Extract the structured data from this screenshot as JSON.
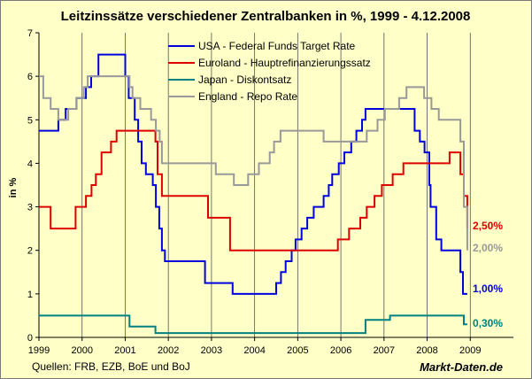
{
  "chart_data": {
    "type": "line",
    "title": "Leitzinssätze verschiedener Zentralbanken in %, 1999 - 4.12.2008",
    "ylabel": "in %",
    "xlabel": "",
    "ylim": [
      0,
      7
    ],
    "xlim": [
      1999,
      2010
    ],
    "y_ticks": [
      "0",
      "1",
      "2",
      "3",
      "4",
      "5",
      "6",
      "7"
    ],
    "x_ticks": [
      "1999",
      "2000",
      "2001",
      "2002",
      "2003",
      "2004",
      "2005",
      "2006",
      "2007",
      "2008",
      "2009"
    ],
    "grid": "vertical",
    "legend_position": "top-center",
    "series": [
      {
        "name": "USA - Federal Funds Target Rate",
        "color": "#0000DD",
        "end_label": "1,00%",
        "points": [
          [
            1999.0,
            4.75
          ],
          [
            1999.45,
            4.75
          ],
          [
            1999.45,
            5.0
          ],
          [
            1999.62,
            5.0
          ],
          [
            1999.62,
            5.25
          ],
          [
            1999.87,
            5.25
          ],
          [
            1999.87,
            5.5
          ],
          [
            2000.09,
            5.5
          ],
          [
            2000.09,
            5.75
          ],
          [
            2000.21,
            5.75
          ],
          [
            2000.21,
            6.0
          ],
          [
            2000.38,
            6.0
          ],
          [
            2000.38,
            6.5
          ],
          [
            2001.0,
            6.5
          ],
          [
            2001.0,
            6.0
          ],
          [
            2001.08,
            6.0
          ],
          [
            2001.08,
            5.5
          ],
          [
            2001.22,
            5.5
          ],
          [
            2001.22,
            5.0
          ],
          [
            2001.3,
            5.0
          ],
          [
            2001.3,
            4.5
          ],
          [
            2001.38,
            4.5
          ],
          [
            2001.38,
            4.0
          ],
          [
            2001.48,
            4.0
          ],
          [
            2001.48,
            3.75
          ],
          [
            2001.64,
            3.75
          ],
          [
            2001.64,
            3.5
          ],
          [
            2001.71,
            3.5
          ],
          [
            2001.71,
            3.0
          ],
          [
            2001.79,
            3.0
          ],
          [
            2001.79,
            2.5
          ],
          [
            2001.85,
            2.5
          ],
          [
            2001.85,
            2.0
          ],
          [
            2001.92,
            2.0
          ],
          [
            2001.92,
            1.75
          ],
          [
            2002.85,
            1.75
          ],
          [
            2002.85,
            1.25
          ],
          [
            2003.49,
            1.25
          ],
          [
            2003.49,
            1.0
          ],
          [
            2004.5,
            1.0
          ],
          [
            2004.5,
            1.25
          ],
          [
            2004.61,
            1.25
          ],
          [
            2004.61,
            1.5
          ],
          [
            2004.72,
            1.5
          ],
          [
            2004.72,
            1.75
          ],
          [
            2004.86,
            1.75
          ],
          [
            2004.86,
            2.0
          ],
          [
            2004.95,
            2.0
          ],
          [
            2004.95,
            2.25
          ],
          [
            2005.09,
            2.25
          ],
          [
            2005.09,
            2.5
          ],
          [
            2005.22,
            2.5
          ],
          [
            2005.22,
            2.75
          ],
          [
            2005.37,
            2.75
          ],
          [
            2005.37,
            3.0
          ],
          [
            2005.6,
            3.0
          ],
          [
            2005.6,
            3.25
          ],
          [
            2005.72,
            3.25
          ],
          [
            2005.72,
            3.5
          ],
          [
            2005.8,
            3.5
          ],
          [
            2005.8,
            3.75
          ],
          [
            2005.95,
            3.75
          ],
          [
            2005.95,
            4.0
          ],
          [
            2006.08,
            4.0
          ],
          [
            2006.08,
            4.25
          ],
          [
            2006.24,
            4.25
          ],
          [
            2006.24,
            4.5
          ],
          [
            2006.36,
            4.5
          ],
          [
            2006.36,
            4.75
          ],
          [
            2006.49,
            4.75
          ],
          [
            2006.49,
            5.0
          ],
          [
            2006.57,
            5.0
          ],
          [
            2006.57,
            5.25
          ],
          [
            2007.71,
            5.25
          ],
          [
            2007.71,
            4.75
          ],
          [
            2007.83,
            4.75
          ],
          [
            2007.83,
            4.5
          ],
          [
            2007.94,
            4.5
          ],
          [
            2007.94,
            4.25
          ],
          [
            2008.05,
            4.25
          ],
          [
            2008.05,
            3.5
          ],
          [
            2008.08,
            3.5
          ],
          [
            2008.08,
            3.0
          ],
          [
            2008.21,
            3.0
          ],
          [
            2008.21,
            2.25
          ],
          [
            2008.33,
            2.25
          ],
          [
            2008.33,
            2.0
          ],
          [
            2008.77,
            2.0
          ],
          [
            2008.77,
            1.5
          ],
          [
            2008.83,
            1.5
          ],
          [
            2008.83,
            1.0
          ],
          [
            2008.93,
            1.0
          ]
        ]
      },
      {
        "name": "Euroland - Hauptrefinanzierungssatz",
        "color": "#DD0000",
        "end_label": "2,50%",
        "points": [
          [
            1999.0,
            3.0
          ],
          [
            1999.27,
            3.0
          ],
          [
            1999.27,
            2.5
          ],
          [
            1999.85,
            2.5
          ],
          [
            1999.85,
            3.0
          ],
          [
            2000.09,
            3.0
          ],
          [
            2000.09,
            3.25
          ],
          [
            2000.22,
            3.25
          ],
          [
            2000.22,
            3.5
          ],
          [
            2000.32,
            3.5
          ],
          [
            2000.32,
            3.75
          ],
          [
            2000.45,
            3.75
          ],
          [
            2000.45,
            4.25
          ],
          [
            2000.67,
            4.25
          ],
          [
            2000.67,
            4.5
          ],
          [
            2000.8,
            4.5
          ],
          [
            2000.8,
            4.75
          ],
          [
            2001.7,
            4.75
          ],
          [
            2001.7,
            4.5
          ],
          [
            2001.75,
            4.5
          ],
          [
            2001.75,
            3.75
          ],
          [
            2001.85,
            3.75
          ],
          [
            2001.85,
            3.25
          ],
          [
            2002.92,
            3.25
          ],
          [
            2002.92,
            2.75
          ],
          [
            2003.43,
            2.75
          ],
          [
            2003.43,
            2.0
          ],
          [
            2005.93,
            2.0
          ],
          [
            2005.93,
            2.25
          ],
          [
            2006.19,
            2.25
          ],
          [
            2006.19,
            2.5
          ],
          [
            2006.45,
            2.5
          ],
          [
            2006.45,
            2.75
          ],
          [
            2006.6,
            2.75
          ],
          [
            2006.6,
            3.0
          ],
          [
            2006.78,
            3.0
          ],
          [
            2006.78,
            3.25
          ],
          [
            2006.95,
            3.25
          ],
          [
            2006.95,
            3.5
          ],
          [
            2007.2,
            3.5
          ],
          [
            2007.2,
            3.75
          ],
          [
            2007.45,
            3.75
          ],
          [
            2007.45,
            4.0
          ],
          [
            2008.52,
            4.0
          ],
          [
            2008.52,
            4.25
          ],
          [
            2008.77,
            4.25
          ],
          [
            2008.77,
            3.75
          ],
          [
            2008.85,
            3.75
          ],
          [
            2008.85,
            3.25
          ],
          [
            2008.93,
            3.25
          ],
          [
            2008.93,
            2.5
          ]
        ]
      },
      {
        "name": "Japan - Diskontsatz",
        "color": "#008080",
        "end_label": "0,30%",
        "points": [
          [
            1999.0,
            0.5
          ],
          [
            2001.1,
            0.5
          ],
          [
            2001.1,
            0.25
          ],
          [
            2001.7,
            0.25
          ],
          [
            2001.7,
            0.1
          ],
          [
            2006.57,
            0.1
          ],
          [
            2006.57,
            0.4
          ],
          [
            2007.14,
            0.4
          ],
          [
            2007.14,
            0.5
          ],
          [
            2008.85,
            0.5
          ],
          [
            2008.85,
            0.3
          ],
          [
            2008.93,
            0.3
          ]
        ]
      },
      {
        "name": "England - Repo Rate",
        "color": "#999999",
        "end_label": "2,00%",
        "points": [
          [
            1999.0,
            6.0
          ],
          [
            1999.1,
            6.0
          ],
          [
            1999.1,
            5.5
          ],
          [
            1999.27,
            5.5
          ],
          [
            1999.27,
            5.25
          ],
          [
            1999.45,
            5.25
          ],
          [
            1999.45,
            5.0
          ],
          [
            1999.68,
            5.0
          ],
          [
            1999.68,
            5.25
          ],
          [
            1999.87,
            5.25
          ],
          [
            1999.87,
            5.5
          ],
          [
            2000.04,
            5.5
          ],
          [
            2000.04,
            5.75
          ],
          [
            2000.13,
            5.75
          ],
          [
            2000.13,
            6.0
          ],
          [
            2001.1,
            6.0
          ],
          [
            2001.1,
            5.75
          ],
          [
            2001.17,
            5.75
          ],
          [
            2001.17,
            5.5
          ],
          [
            2001.35,
            5.5
          ],
          [
            2001.35,
            5.25
          ],
          [
            2001.6,
            5.25
          ],
          [
            2001.6,
            5.0
          ],
          [
            2001.71,
            5.0
          ],
          [
            2001.71,
            4.75
          ],
          [
            2001.8,
            4.75
          ],
          [
            2001.8,
            4.5
          ],
          [
            2001.85,
            4.5
          ],
          [
            2001.85,
            4.0
          ],
          [
            2003.1,
            4.0
          ],
          [
            2003.1,
            3.75
          ],
          [
            2003.52,
            3.75
          ],
          [
            2003.52,
            3.5
          ],
          [
            2003.85,
            3.5
          ],
          [
            2003.85,
            3.75
          ],
          [
            2004.1,
            3.75
          ],
          [
            2004.1,
            4.0
          ],
          [
            2004.35,
            4.0
          ],
          [
            2004.35,
            4.25
          ],
          [
            2004.45,
            4.25
          ],
          [
            2004.45,
            4.5
          ],
          [
            2004.6,
            4.5
          ],
          [
            2004.6,
            4.75
          ],
          [
            2005.6,
            4.75
          ],
          [
            2005.6,
            4.5
          ],
          [
            2006.6,
            4.5
          ],
          [
            2006.6,
            4.75
          ],
          [
            2006.85,
            4.75
          ],
          [
            2006.85,
            5.0
          ],
          [
            2007.02,
            5.0
          ],
          [
            2007.02,
            5.25
          ],
          [
            2007.35,
            5.25
          ],
          [
            2007.35,
            5.5
          ],
          [
            2007.52,
            5.5
          ],
          [
            2007.52,
            5.75
          ],
          [
            2007.93,
            5.75
          ],
          [
            2007.93,
            5.5
          ],
          [
            2008.1,
            5.5
          ],
          [
            2008.1,
            5.25
          ],
          [
            2008.27,
            5.25
          ],
          [
            2008.27,
            5.0
          ],
          [
            2008.77,
            5.0
          ],
          [
            2008.77,
            4.5
          ],
          [
            2008.85,
            4.5
          ],
          [
            2008.85,
            3.0
          ],
          [
            2008.93,
            3.0
          ],
          [
            2008.93,
            2.0
          ]
        ]
      }
    ]
  },
  "footer": {
    "source": "Quellen: FRB, EZB, BoE und BoJ",
    "brand": "Markt-Daten.de"
  }
}
